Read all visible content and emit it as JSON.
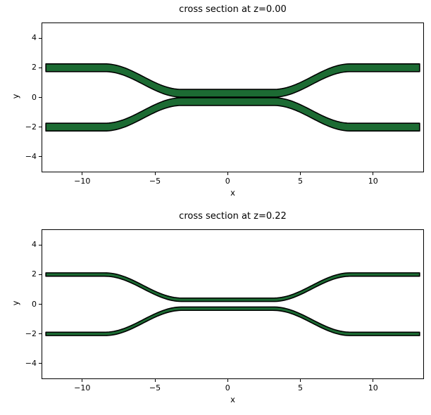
{
  "figure": {
    "background": "#ffffff",
    "band_fill": "#1c6b33",
    "band_edge": "#000000"
  },
  "chart_data": [
    {
      "type": "area",
      "title": "cross section at z=0.00",
      "xlabel": "x",
      "ylabel": "y",
      "xlim": [
        -12.75,
        13.45
      ],
      "ylim": [
        -5,
        5
      ],
      "xticks": [
        -10,
        -5,
        0,
        5,
        10
      ],
      "xtick_labels": [
        "−10",
        "−5",
        "0",
        "5",
        "10"
      ],
      "yticks": [
        -4,
        -2,
        0,
        2,
        4
      ],
      "ytick_labels": [
        "−4",
        "−2",
        "0",
        "2",
        "4"
      ],
      "grid": false,
      "legend": null,
      "geometry": {
        "x_start": -12.5,
        "x_end": 13.2,
        "bend_x_inner": 3.15,
        "bend_x_outer": 8.45,
        "outer_center_y": 2.0,
        "inner_center_y": 0.28,
        "half_thickness": 0.26,
        "transition": "smooth-cosine-s-bend"
      },
      "series": [
        {
          "name": "top waveguide band",
          "sign": 1,
          "centerline_keypoints": [
            [
              -12.5,
              2.0
            ],
            [
              -8.45,
              2.0
            ],
            [
              -3.15,
              0.28
            ],
            [
              3.15,
              0.28
            ],
            [
              8.45,
              2.0
            ],
            [
              13.2,
              2.0
            ]
          ]
        },
        {
          "name": "bottom waveguide band",
          "sign": -1,
          "centerline_keypoints": [
            [
              -12.5,
              -2.0
            ],
            [
              -8.45,
              -2.0
            ],
            [
              -3.15,
              -0.28
            ],
            [
              3.15,
              -0.28
            ],
            [
              8.45,
              -2.0
            ],
            [
              13.2,
              -2.0
            ]
          ]
        }
      ],
      "style": {
        "fill": "#1c6b33",
        "stroke": "#000000",
        "stroke_width": 1.6
      }
    },
    {
      "type": "area",
      "title": "cross section at z=0.22",
      "xlabel": "x",
      "ylabel": "y",
      "xlim": [
        -12.75,
        13.45
      ],
      "ylim": [
        -5,
        5
      ],
      "xticks": [
        -10,
        -5,
        0,
        5,
        10
      ],
      "xtick_labels": [
        "−10",
        "−5",
        "0",
        "5",
        "10"
      ],
      "yticks": [
        -4,
        -2,
        0,
        2,
        4
      ],
      "ytick_labels": [
        "−4",
        "−2",
        "0",
        "2",
        "4"
      ],
      "grid": false,
      "legend": null,
      "geometry": {
        "x_start": -12.5,
        "x_end": 13.2,
        "bend_x_inner": 3.15,
        "bend_x_outer": 8.45,
        "outer_center_y": 2.0,
        "inner_center_y": 0.3,
        "half_thickness": 0.115,
        "transition": "smooth-cosine-s-bend"
      },
      "series": [
        {
          "name": "top waveguide band",
          "sign": 1,
          "centerline_keypoints": [
            [
              -12.5,
              2.0
            ],
            [
              -8.45,
              2.0
            ],
            [
              -3.15,
              0.3
            ],
            [
              3.15,
              0.3
            ],
            [
              8.45,
              2.0
            ],
            [
              13.2,
              2.0
            ]
          ]
        },
        {
          "name": "bottom waveguide band",
          "sign": -1,
          "centerline_keypoints": [
            [
              -12.5,
              -2.0
            ],
            [
              -8.45,
              -2.0
            ],
            [
              -3.15,
              -0.3
            ],
            [
              3.15,
              -0.3
            ],
            [
              8.45,
              -2.0
            ],
            [
              13.2,
              -2.0
            ]
          ]
        }
      ],
      "style": {
        "fill": "#1c6b33",
        "stroke": "#000000",
        "stroke_width": 1.6
      }
    }
  ]
}
